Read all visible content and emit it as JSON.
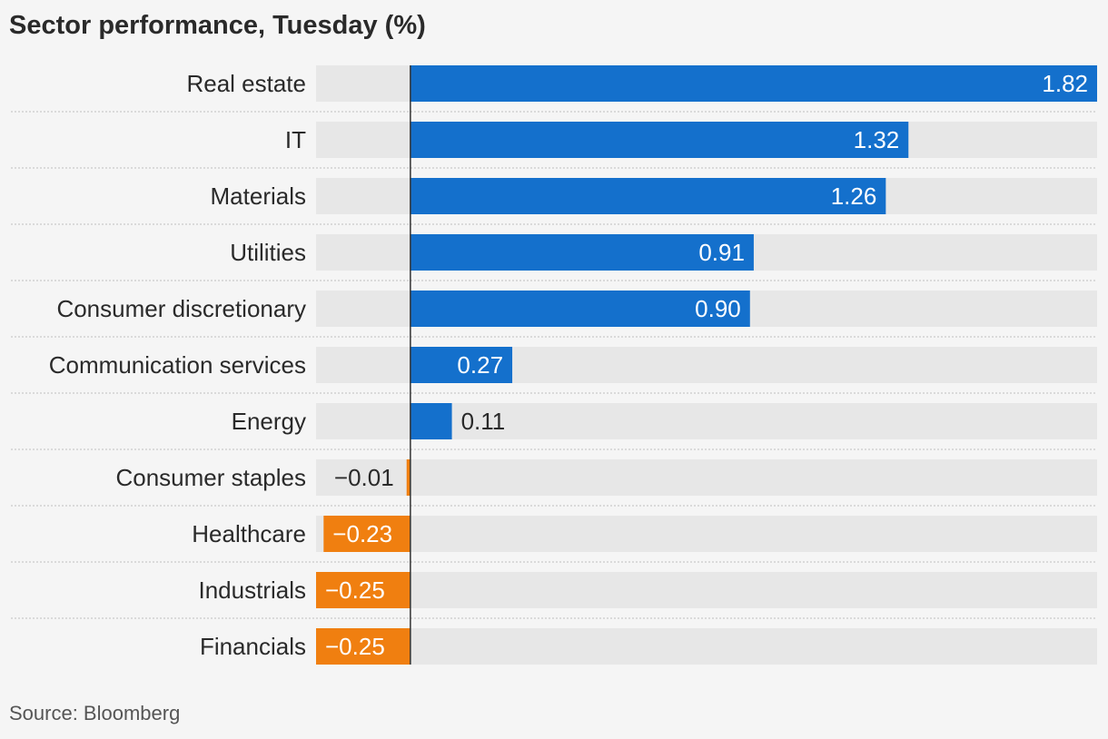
{
  "title": "Sector performance, Tuesday (%)",
  "source": "Source: Bloomberg",
  "colors": {
    "positive": "#1470cc",
    "negative": "#f07f10",
    "track": "#e7e7e7",
    "separator": "#c9c9c9",
    "axis": "#333333"
  },
  "chart_data": {
    "type": "bar",
    "orientation": "horizontal",
    "title": "Sector performance, Tuesday (%)",
    "categories": [
      "Real estate",
      "IT",
      "Materials",
      "Utilities",
      "Consumer discretionary",
      "Communication services",
      "Energy",
      "Consumer staples",
      "Healthcare",
      "Industrials",
      "Financials"
    ],
    "values": [
      1.82,
      1.32,
      1.26,
      0.91,
      0.9,
      0.27,
      0.11,
      -0.01,
      -0.23,
      -0.25,
      -0.25
    ],
    "value_labels": [
      "1.82",
      "1.32",
      "1.26",
      "0.91",
      "0.90",
      "0.27",
      "0.11",
      "−0.01",
      "−0.23",
      "−0.25",
      "−0.25"
    ],
    "xlim": [
      -0.25,
      1.82
    ],
    "grid": false,
    "legend": "none"
  }
}
